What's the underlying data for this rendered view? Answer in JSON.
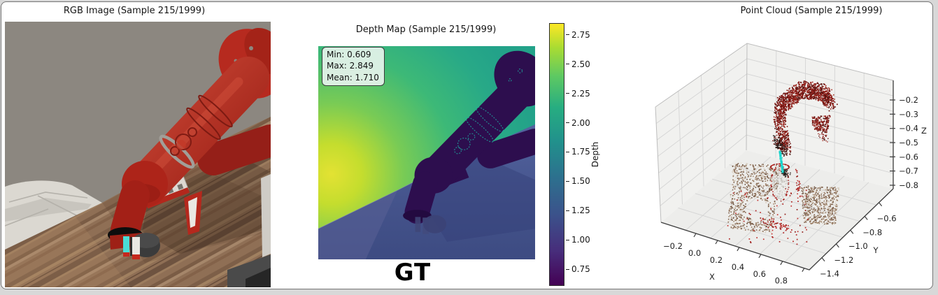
{
  "window": {
    "bg": "#ffffff",
    "border_color": "#757575"
  },
  "rgb_panel": {
    "title": "RGB Image (Sample 215/1999)"
  },
  "depth_panel": {
    "title": "Depth Map (Sample 215/1999)",
    "stats_lines": [
      "Min: 0.609",
      "Max: 2.849",
      "Mean: 1.710"
    ],
    "stats": {
      "min": 0.609,
      "max": 2.849,
      "mean": 1.71
    },
    "bottom_label": "GT",
    "colorbar": {
      "label": "Depth",
      "colormap": "viridis",
      "vmin": 0.609,
      "vmax": 2.849,
      "ticks": [
        2.75,
        2.5,
        2.25,
        2.0,
        1.75,
        1.5,
        1.25,
        1.0,
        0.75
      ]
    }
  },
  "pointcloud_panel": {
    "title": "Point Cloud (Sample 215/1999)",
    "xlabel": "X",
    "ylabel": "Y",
    "zlabel": "Z",
    "x_ticks": [
      "−0.2",
      "0.0",
      "0.2",
      "0.4",
      "0.6",
      "0.8"
    ],
    "y_ticks": [
      "−1.4",
      "−1.2",
      "−1.0",
      "−0.8",
      "−0.6"
    ],
    "z_ticks": [
      "−0.2",
      "−0.3",
      "−0.4",
      "−0.5",
      "−0.6",
      "−0.7",
      "−0.8"
    ]
  },
  "colors": {
    "robot_red": "#b02820",
    "point_arm_red": "#8c1b16",
    "point_table_brown": "#8a6a52",
    "gripper_cyan": "#14d3cb",
    "depth_near_purple": "#2d0e4e",
    "depth_table_blue": "#4a5b94",
    "depth_far_yellow": "#dde229"
  },
  "chart_data": [
    {
      "type": "image",
      "panel": "rgb",
      "title": "RGB Image (Sample 215/1999)",
      "content": "Simulated RGB camera frame: red robot arm reaching down from upper right toward a black puck on a wooden table; white plate with holes on the table; cyan and white gripper fingers; gray wall background; white tiled floor at lower left"
    },
    {
      "type": "heatmap",
      "panel": "depth",
      "title": "Depth Map (Sample 215/1999)",
      "colormap": "viridis",
      "label_under": "GT",
      "stats": {
        "min": 0.609,
        "max": 2.849,
        "mean": 1.71
      },
      "colorbar_label": "Depth",
      "colorbar_ticks": [
        2.75,
        2.5,
        2.25,
        2.0,
        1.75,
        1.5,
        1.25,
        1.0,
        0.75
      ],
      "content": "Depth image of the same scene: background farthest ~2.8 (yellow/green), table plane ~1.2-1.6 (slate blue), robot arm nearest ~0.6-0.9 (dark purple)"
    },
    {
      "type": "scatter",
      "panel": "pointcloud",
      "is3d": true,
      "title": "Point Cloud (Sample 215/1999)",
      "xlabel": "X",
      "ylabel": "Y",
      "zlabel": "Z",
      "x_ticks": [
        -0.2,
        0.0,
        0.2,
        0.4,
        0.6,
        0.8
      ],
      "y_ticks": [
        -1.4,
        -1.2,
        -1.0,
        -0.8,
        -0.6
      ],
      "z_ticks": [
        -0.8,
        -0.7,
        -0.6,
        -0.5,
        -0.4,
        -0.3,
        -0.2
      ],
      "clusters": [
        {
          "name": "robot-arm",
          "color": "#8c1b16",
          "approx_center": [
            0.35,
            -0.9,
            -0.3
          ]
        },
        {
          "name": "gripper-axis-line",
          "color": "#14d3cb",
          "approx_center": [
            0.3,
            -0.95,
            -0.55
          ]
        },
        {
          "name": "cylinder-object",
          "color": "#d9d5cf",
          "approx_center": [
            0.3,
            -0.95,
            -0.7
          ]
        },
        {
          "name": "table-patch-left",
          "color": "#8a6a52",
          "approx_center": [
            0.15,
            -0.9,
            -0.8
          ]
        },
        {
          "name": "table-patch-right",
          "color": "#8a6a52",
          "approx_center": [
            0.5,
            -1.05,
            -0.8
          ]
        },
        {
          "name": "sparse-red-outliers",
          "color": "#b12220"
        }
      ]
    }
  ]
}
